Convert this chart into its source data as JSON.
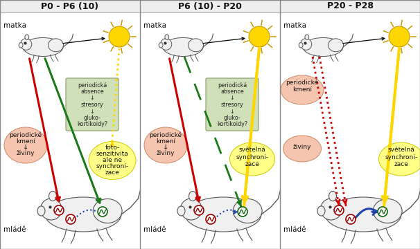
{
  "panels": [
    "P0 - P6 (10)",
    "P6 (10) - P20",
    "P20 - P28"
  ],
  "bg_color": "#ffffff",
  "border_color": "#888888",
  "arrow_red": "#cc0000",
  "arrow_green": "#1a7a1a",
  "arrow_yellow": "#FFD700",
  "arrow_blue": "#2244aa",
  "ellipse_pink_fc": "#f5c5b0",
  "ellipse_pink_ec": "#cc8866",
  "ellipse_yellow_fc": "#ffff88",
  "ellipse_yellow_ec": "#cccc00",
  "box_green_fc": "#d0e0b8",
  "box_green_ec": "#8a9a6a",
  "rat_fc": "#f0f0f0",
  "rat_ec": "#555555",
  "sun_fc": "#FFD700",
  "sun_ec": "#cc9900",
  "title_fontsize": 9,
  "label_fontsize": 6.5
}
